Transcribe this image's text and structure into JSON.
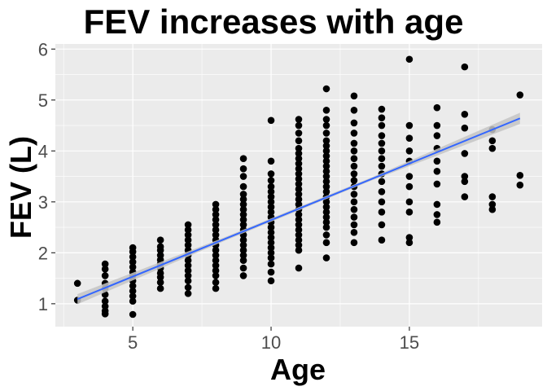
{
  "chart_data": {
    "type": "scatter",
    "title": "FEV increases with age",
    "xlabel": "Age",
    "ylabel": "FEV (L)",
    "xlim": [
      2.2,
      19.8
    ],
    "ylim": [
      0.55,
      6.1
    ],
    "xticks": [
      5,
      10,
      15
    ],
    "yticks": [
      1,
      2,
      3,
      4,
      5,
      6
    ],
    "grid": true,
    "colors": {
      "panel": "#ebebeb",
      "grid": "#ffffff",
      "points": "#000000",
      "fit_line": "#3366ff",
      "ci_band": "#c4c4c4"
    },
    "fit": {
      "method": "lm",
      "x": [
        3,
        19
      ],
      "y": [
        1.09,
        4.64
      ],
      "ci_halfwidth": [
        0.1,
        0.035,
        0.03,
        0.11
      ]
    },
    "points": [
      {
        "x": 3,
        "y": 1.4
      },
      {
        "x": 3,
        "y": 1.07
      },
      {
        "x": 4,
        "y": 0.8
      },
      {
        "x": 4,
        "y": 0.86
      },
      {
        "x": 4,
        "y": 0.95
      },
      {
        "x": 4,
        "y": 1.05
      },
      {
        "x": 4,
        "y": 1.18
      },
      {
        "x": 4,
        "y": 1.3
      },
      {
        "x": 4,
        "y": 1.4
      },
      {
        "x": 4,
        "y": 1.55
      },
      {
        "x": 4,
        "y": 1.68
      },
      {
        "x": 4,
        "y": 1.78
      },
      {
        "x": 5,
        "y": 0.79
      },
      {
        "x": 5,
        "y": 1.05
      },
      {
        "x": 5,
        "y": 1.15
      },
      {
        "x": 5,
        "y": 1.25
      },
      {
        "x": 5,
        "y": 1.35
      },
      {
        "x": 5,
        "y": 1.45
      },
      {
        "x": 5,
        "y": 1.55
      },
      {
        "x": 5,
        "y": 1.62
      },
      {
        "x": 5,
        "y": 1.72
      },
      {
        "x": 5,
        "y": 1.82
      },
      {
        "x": 5,
        "y": 1.92
      },
      {
        "x": 5,
        "y": 2.02
      },
      {
        "x": 5,
        "y": 2.1
      },
      {
        "x": 6,
        "y": 1.3
      },
      {
        "x": 6,
        "y": 1.42
      },
      {
        "x": 6,
        "y": 1.52
      },
      {
        "x": 6,
        "y": 1.6
      },
      {
        "x": 6,
        "y": 1.7
      },
      {
        "x": 6,
        "y": 1.78
      },
      {
        "x": 6,
        "y": 1.86
      },
      {
        "x": 6,
        "y": 1.95
      },
      {
        "x": 6,
        "y": 2.05
      },
      {
        "x": 6,
        "y": 2.12
      },
      {
        "x": 6,
        "y": 2.25
      },
      {
        "x": 7,
        "y": 1.2
      },
      {
        "x": 7,
        "y": 1.32
      },
      {
        "x": 7,
        "y": 1.45
      },
      {
        "x": 7,
        "y": 1.55
      },
      {
        "x": 7,
        "y": 1.65
      },
      {
        "x": 7,
        "y": 1.75
      },
      {
        "x": 7,
        "y": 1.85
      },
      {
        "x": 7,
        "y": 1.95
      },
      {
        "x": 7,
        "y": 2.05
      },
      {
        "x": 7,
        "y": 2.15
      },
      {
        "x": 7,
        "y": 2.25
      },
      {
        "x": 7,
        "y": 2.35
      },
      {
        "x": 7,
        "y": 2.45
      },
      {
        "x": 7,
        "y": 2.55
      },
      {
        "x": 8,
        "y": 1.3
      },
      {
        "x": 8,
        "y": 1.42
      },
      {
        "x": 8,
        "y": 1.55
      },
      {
        "x": 8,
        "y": 1.65
      },
      {
        "x": 8,
        "y": 1.75
      },
      {
        "x": 8,
        "y": 1.85
      },
      {
        "x": 8,
        "y": 1.95
      },
      {
        "x": 8,
        "y": 2.05
      },
      {
        "x": 8,
        "y": 2.15
      },
      {
        "x": 8,
        "y": 2.25
      },
      {
        "x": 8,
        "y": 2.35
      },
      {
        "x": 8,
        "y": 2.45
      },
      {
        "x": 8,
        "y": 2.55
      },
      {
        "x": 8,
        "y": 2.65
      },
      {
        "x": 8,
        "y": 2.75
      },
      {
        "x": 8,
        "y": 2.85
      },
      {
        "x": 8,
        "y": 2.95
      },
      {
        "x": 9,
        "y": 1.55
      },
      {
        "x": 9,
        "y": 1.7
      },
      {
        "x": 9,
        "y": 1.85
      },
      {
        "x": 9,
        "y": 1.95
      },
      {
        "x": 9,
        "y": 2.05
      },
      {
        "x": 9,
        "y": 2.15
      },
      {
        "x": 9,
        "y": 2.25
      },
      {
        "x": 9,
        "y": 2.35
      },
      {
        "x": 9,
        "y": 2.45
      },
      {
        "x": 9,
        "y": 2.55
      },
      {
        "x": 9,
        "y": 2.65
      },
      {
        "x": 9,
        "y": 2.75
      },
      {
        "x": 9,
        "y": 2.85
      },
      {
        "x": 9,
        "y": 2.95
      },
      {
        "x": 9,
        "y": 3.05
      },
      {
        "x": 9,
        "y": 3.15
      },
      {
        "x": 9,
        "y": 3.3
      },
      {
        "x": 9,
        "y": 3.5
      },
      {
        "x": 9,
        "y": 3.65
      },
      {
        "x": 9,
        "y": 3.85
      },
      {
        "x": 10,
        "y": 1.45
      },
      {
        "x": 10,
        "y": 1.62
      },
      {
        "x": 10,
        "y": 1.78
      },
      {
        "x": 10,
        "y": 1.9
      },
      {
        "x": 10,
        "y": 2.0
      },
      {
        "x": 10,
        "y": 2.1
      },
      {
        "x": 10,
        "y": 2.2
      },
      {
        "x": 10,
        "y": 2.3
      },
      {
        "x": 10,
        "y": 2.4
      },
      {
        "x": 10,
        "y": 2.5
      },
      {
        "x": 10,
        "y": 2.6
      },
      {
        "x": 10,
        "y": 2.7
      },
      {
        "x": 10,
        "y": 2.8
      },
      {
        "x": 10,
        "y": 2.9
      },
      {
        "x": 10,
        "y": 3.0
      },
      {
        "x": 10,
        "y": 3.1
      },
      {
        "x": 10,
        "y": 3.2
      },
      {
        "x": 10,
        "y": 3.3
      },
      {
        "x": 10,
        "y": 3.42
      },
      {
        "x": 10,
        "y": 3.55
      },
      {
        "x": 10,
        "y": 3.8
      },
      {
        "x": 10,
        "y": 4.6
      },
      {
        "x": 11,
        "y": 1.7
      },
      {
        "x": 11,
        "y": 2.05
      },
      {
        "x": 11,
        "y": 2.15
      },
      {
        "x": 11,
        "y": 2.25
      },
      {
        "x": 11,
        "y": 2.35
      },
      {
        "x": 11,
        "y": 2.45
      },
      {
        "x": 11,
        "y": 2.55
      },
      {
        "x": 11,
        "y": 2.65
      },
      {
        "x": 11,
        "y": 2.75
      },
      {
        "x": 11,
        "y": 2.85
      },
      {
        "x": 11,
        "y": 2.95
      },
      {
        "x": 11,
        "y": 3.05
      },
      {
        "x": 11,
        "y": 3.15
      },
      {
        "x": 11,
        "y": 3.25
      },
      {
        "x": 11,
        "y": 3.35
      },
      {
        "x": 11,
        "y": 3.45
      },
      {
        "x": 11,
        "y": 3.55
      },
      {
        "x": 11,
        "y": 3.65
      },
      {
        "x": 11,
        "y": 3.75
      },
      {
        "x": 11,
        "y": 3.85
      },
      {
        "x": 11,
        "y": 3.95
      },
      {
        "x": 11,
        "y": 4.05
      },
      {
        "x": 11,
        "y": 4.2
      },
      {
        "x": 11,
        "y": 4.35
      },
      {
        "x": 11,
        "y": 4.5
      },
      {
        "x": 11,
        "y": 4.62
      },
      {
        "x": 12,
        "y": 1.9
      },
      {
        "x": 12,
        "y": 2.2
      },
      {
        "x": 12,
        "y": 2.35
      },
      {
        "x": 12,
        "y": 2.5
      },
      {
        "x": 12,
        "y": 2.6
      },
      {
        "x": 12,
        "y": 2.7
      },
      {
        "x": 12,
        "y": 2.8
      },
      {
        "x": 12,
        "y": 2.9
      },
      {
        "x": 12,
        "y": 3.0
      },
      {
        "x": 12,
        "y": 3.1
      },
      {
        "x": 12,
        "y": 3.2
      },
      {
        "x": 12,
        "y": 3.3
      },
      {
        "x": 12,
        "y": 3.4
      },
      {
        "x": 12,
        "y": 3.5
      },
      {
        "x": 12,
        "y": 3.6
      },
      {
        "x": 12,
        "y": 3.7
      },
      {
        "x": 12,
        "y": 3.8
      },
      {
        "x": 12,
        "y": 3.9
      },
      {
        "x": 12,
        "y": 4.0
      },
      {
        "x": 12,
        "y": 4.1
      },
      {
        "x": 12,
        "y": 4.2
      },
      {
        "x": 12,
        "y": 4.35
      },
      {
        "x": 12,
        "y": 4.5
      },
      {
        "x": 12,
        "y": 4.62
      },
      {
        "x": 12,
        "y": 4.8
      },
      {
        "x": 12,
        "y": 5.22
      },
      {
        "x": 13,
        "y": 2.2
      },
      {
        "x": 13,
        "y": 2.4
      },
      {
        "x": 13,
        "y": 2.55
      },
      {
        "x": 13,
        "y": 2.7
      },
      {
        "x": 13,
        "y": 2.85
      },
      {
        "x": 13,
        "y": 3.0
      },
      {
        "x": 13,
        "y": 3.15
      },
      {
        "x": 13,
        "y": 3.3
      },
      {
        "x": 13,
        "y": 3.42
      },
      {
        "x": 13,
        "y": 3.55
      },
      {
        "x": 13,
        "y": 3.7
      },
      {
        "x": 13,
        "y": 3.85
      },
      {
        "x": 13,
        "y": 4.0
      },
      {
        "x": 13,
        "y": 4.15
      },
      {
        "x": 13,
        "y": 4.35
      },
      {
        "x": 13,
        "y": 4.55
      },
      {
        "x": 13,
        "y": 4.8
      },
      {
        "x": 13,
        "y": 5.08
      },
      {
        "x": 14,
        "y": 2.25
      },
      {
        "x": 14,
        "y": 2.55
      },
      {
        "x": 14,
        "y": 2.8
      },
      {
        "x": 14,
        "y": 3.0
      },
      {
        "x": 14,
        "y": 3.2
      },
      {
        "x": 14,
        "y": 3.4
      },
      {
        "x": 14,
        "y": 3.55
      },
      {
        "x": 14,
        "y": 3.7
      },
      {
        "x": 14,
        "y": 3.85
      },
      {
        "x": 14,
        "y": 4.0
      },
      {
        "x": 14,
        "y": 4.15
      },
      {
        "x": 14,
        "y": 4.3
      },
      {
        "x": 14,
        "y": 4.5
      },
      {
        "x": 14,
        "y": 4.65
      },
      {
        "x": 14,
        "y": 4.82
      },
      {
        "x": 15,
        "y": 2.2
      },
      {
        "x": 15,
        "y": 2.3
      },
      {
        "x": 15,
        "y": 2.8
      },
      {
        "x": 15,
        "y": 3.0
      },
      {
        "x": 15,
        "y": 3.3
      },
      {
        "x": 15,
        "y": 3.5
      },
      {
        "x": 15,
        "y": 3.8
      },
      {
        "x": 15,
        "y": 4.0
      },
      {
        "x": 15,
        "y": 4.25
      },
      {
        "x": 15,
        "y": 4.5
      },
      {
        "x": 15,
        "y": 5.8
      },
      {
        "x": 16,
        "y": 2.6
      },
      {
        "x": 16,
        "y": 2.75
      },
      {
        "x": 16,
        "y": 2.95
      },
      {
        "x": 16,
        "y": 3.35
      },
      {
        "x": 16,
        "y": 3.6
      },
      {
        "x": 16,
        "y": 3.8
      },
      {
        "x": 16,
        "y": 4.05
      },
      {
        "x": 16,
        "y": 4.3
      },
      {
        "x": 16,
        "y": 4.5
      },
      {
        "x": 16,
        "y": 4.85
      },
      {
        "x": 17,
        "y": 3.1
      },
      {
        "x": 17,
        "y": 3.4
      },
      {
        "x": 17,
        "y": 3.5
      },
      {
        "x": 17,
        "y": 3.95
      },
      {
        "x": 17,
        "y": 4.45
      },
      {
        "x": 17,
        "y": 4.72
      },
      {
        "x": 17,
        "y": 5.65
      },
      {
        "x": 18,
        "y": 2.85
      },
      {
        "x": 18,
        "y": 2.95
      },
      {
        "x": 18,
        "y": 3.1
      },
      {
        "x": 18,
        "y": 4.05
      },
      {
        "x": 18,
        "y": 4.2
      },
      {
        "x": 18,
        "y": 4.42
      },
      {
        "x": 19,
        "y": 3.33
      },
      {
        "x": 19,
        "y": 3.52
      },
      {
        "x": 19,
        "y": 5.1
      }
    ]
  }
}
